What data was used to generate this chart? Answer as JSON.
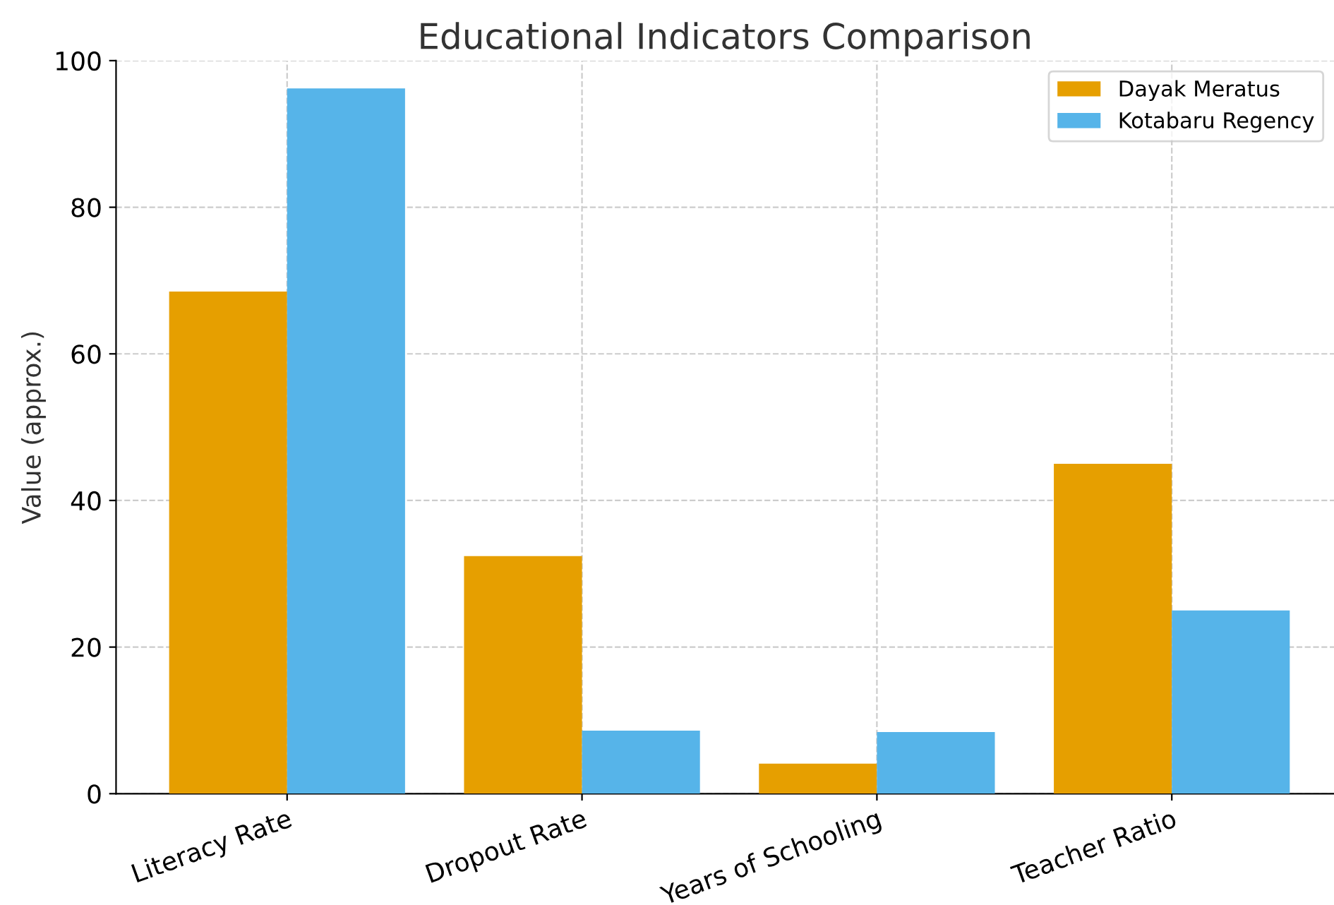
{
  "chart_data": {
    "type": "bar",
    "title": "Educational Indicators Comparison",
    "ylabel": "Value (approx.)",
    "categories": [
      "Literacy Rate",
      "Dropout Rate",
      "Years of Schooling",
      "Teacher Ratio"
    ],
    "series": [
      {
        "name": "Dayak Meratus",
        "color": "#e69f00",
        "values": [
          68.5,
          32.4,
          4.1,
          45.0
        ]
      },
      {
        "name": "Kotabaru Regency",
        "color": "#56b4e9",
        "values": [
          96.2,
          8.6,
          8.4,
          25.0
        ]
      }
    ],
    "ylim": [
      0,
      100
    ],
    "yticks": [
      0,
      20,
      40,
      60,
      80,
      100
    ],
    "grid": true,
    "legend": "top right"
  }
}
